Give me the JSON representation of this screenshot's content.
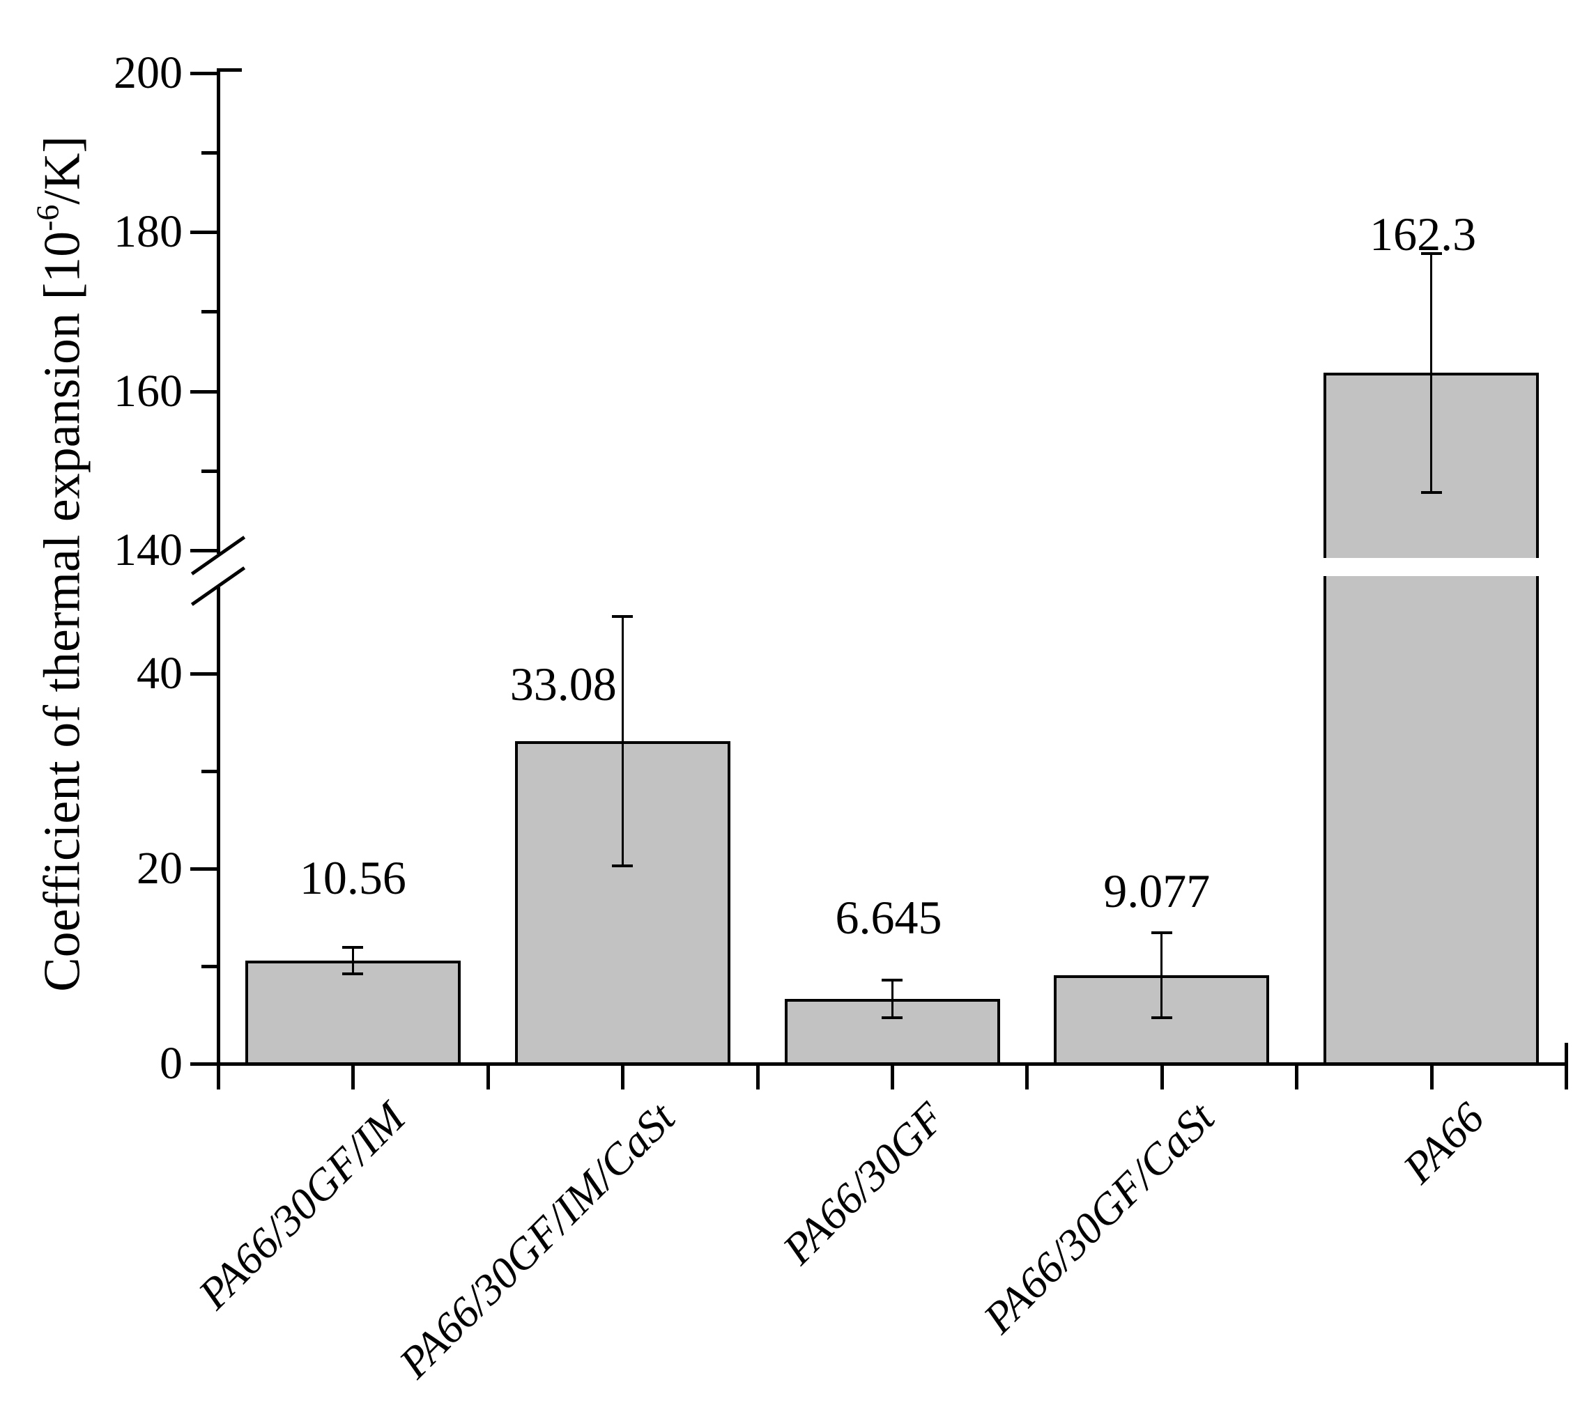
{
  "chart_data": {
    "type": "bar",
    "title": "",
    "xlabel": "",
    "ylabel": "Coefficient of thermal expansion [10⁻⁶/K]",
    "ylabel_parts": {
      "main": "Coefficient of thermal expansion [10",
      "sup": "-6",
      "suffix": "/K]"
    },
    "categories": [
      "PA66/30GF/IM",
      "PA66/30GF/IM/CaSt",
      "PA66/30GF",
      "PA66/30GF/CaSt",
      "PA66"
    ],
    "values": [
      10.56,
      33.08,
      6.645,
      9.077,
      162.3
    ],
    "value_labels": [
      "10.56",
      "33.08",
      "6.645",
      "9.077",
      "162.3"
    ],
    "error_bars": [
      1.37,
      12.8,
      1.92,
      4.35,
      15.0
    ],
    "axis_break": {
      "lower_max": 50,
      "upper_min": 140
    },
    "y_axis": {
      "lower_major_ticks": [
        0,
        20,
        40
      ],
      "lower_minor_ticks": [
        10,
        30
      ],
      "upper_major_ticks": [
        140,
        160,
        180,
        200
      ],
      "upper_minor_ticks": [
        150,
        170,
        190
      ],
      "ylim_lower_segment": [
        0,
        50
      ],
      "ylim_upper_segment": [
        140,
        200
      ]
    },
    "grid": false,
    "legend": null,
    "colors": {
      "bar_fill": "#c2c2c2",
      "bar_border": "#000000",
      "axis": "#000000",
      "text": "#000000",
      "background": "#ffffff"
    }
  }
}
